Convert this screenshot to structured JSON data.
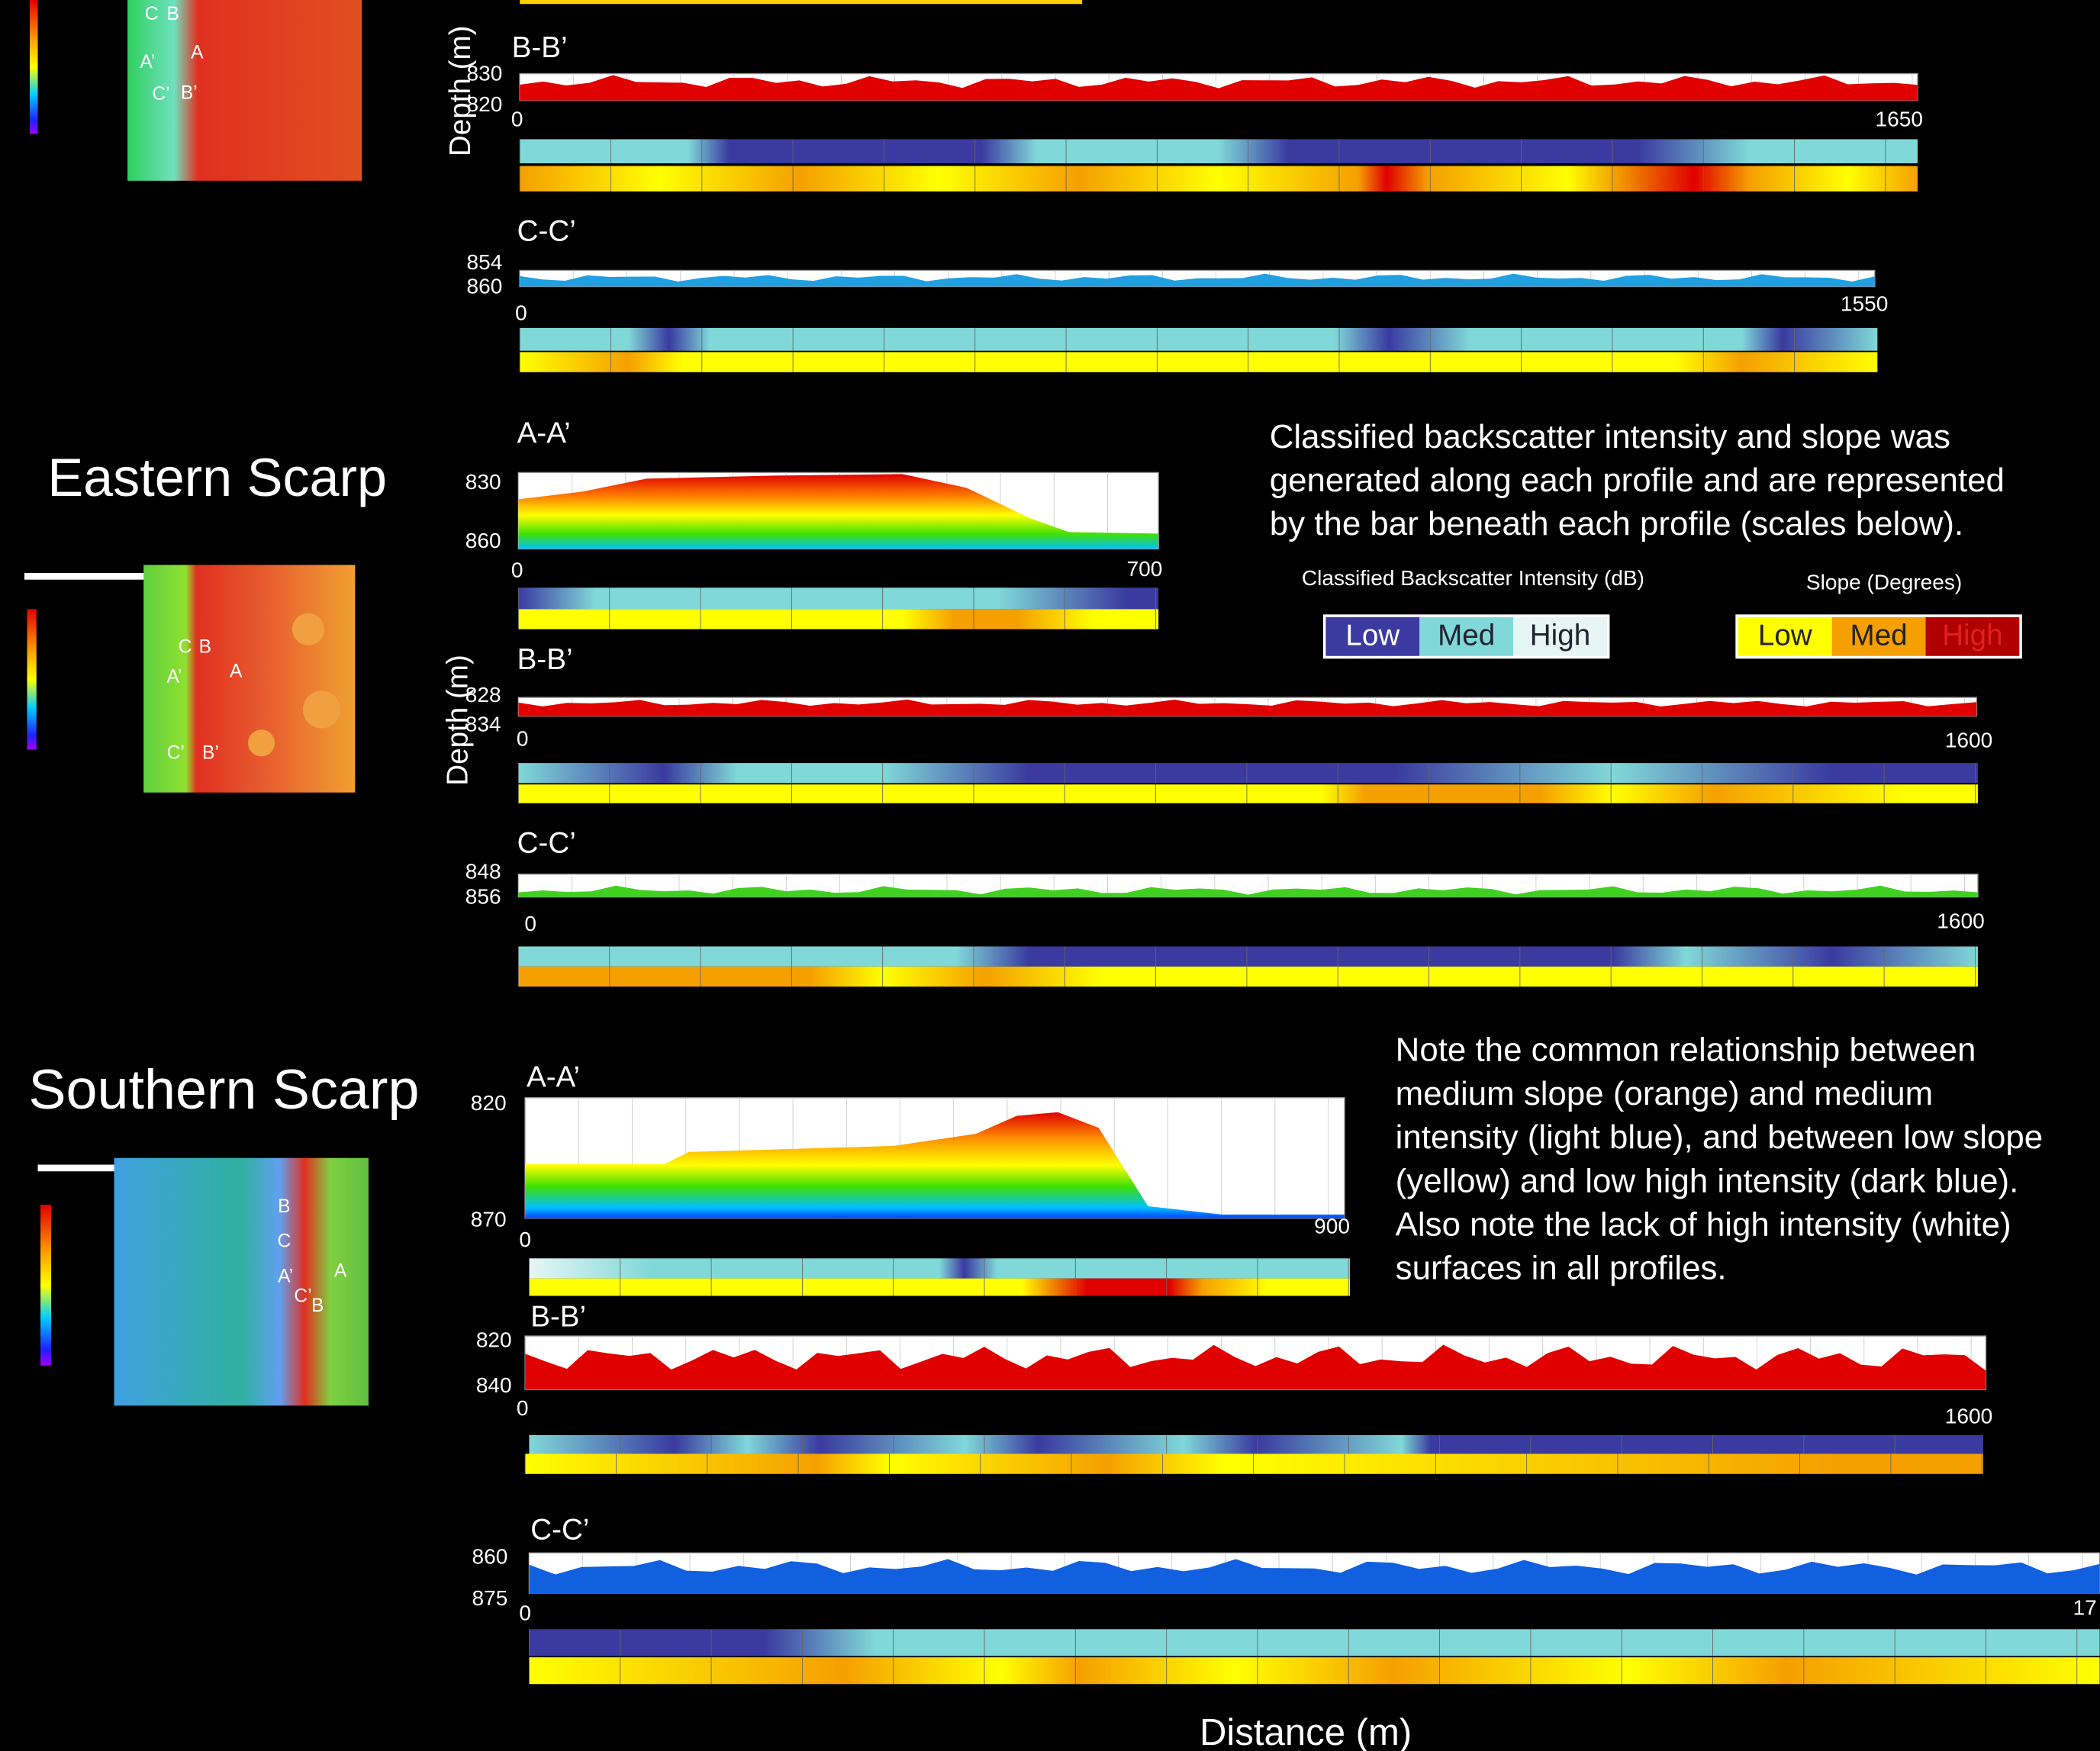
{
  "top": {
    "map_labels": [
      "C",
      "B",
      "A’",
      "A",
      "C’",
      "B’"
    ],
    "profiles": [
      {
        "label": "B-B’",
        "depth_ticks": [
          830,
          820
        ],
        "distance_ticks": [
          0,
          1650
        ]
      },
      {
        "label": "C-C’",
        "depth_ticks": [
          854,
          860
        ],
        "distance_ticks": [
          0,
          1550
        ]
      }
    ]
  },
  "axis_labels": {
    "depth": "Depth (m)",
    "distance": "Distance (m)"
  },
  "eastern": {
    "title": "Eastern Scarp",
    "map_labels": [
      "C",
      "B",
      "A’",
      "A",
      "C’",
      "B’"
    ],
    "profiles": [
      {
        "label": "A-A’",
        "depth_ticks": [
          830,
          860
        ],
        "distance_ticks": [
          0,
          700
        ]
      },
      {
        "label": "B-B’",
        "depth_ticks": [
          828,
          834
        ],
        "distance_ticks": [
          0,
          1600
        ]
      },
      {
        "label": "C-C’",
        "depth_ticks": [
          848,
          856
        ],
        "distance_ticks": [
          0,
          1600
        ]
      }
    ]
  },
  "southern": {
    "title": "Southern Scarp",
    "map_labels": [
      "B",
      "C",
      "A’",
      "A",
      "C’",
      "B"
    ],
    "profiles": [
      {
        "label": "A-A’",
        "depth_ticks": [
          820,
          870
        ],
        "distance_ticks": [
          0,
          900
        ]
      },
      {
        "label": "B-B’",
        "depth_ticks": [
          820,
          840
        ],
        "distance_ticks": [
          0,
          1600
        ]
      },
      {
        "label": "C-C’",
        "depth_ticks": [
          860,
          875
        ],
        "distance_ticks": [
          0,
          "17"
        ]
      }
    ]
  },
  "description": [
    "Classified backscatter intensity and slope was",
    "generated along each profile and are represented",
    "by the bar beneath each profile (scales below)."
  ],
  "note": [
    "Note the common relationship between",
    "medium slope (orange) and medium",
    "intensity (light blue), and between low slope",
    "(yellow) and low high intensity (dark blue).",
    "Also note the lack of high intensity (white)",
    "surfaces in all profiles."
  ],
  "legend": {
    "intensity": {
      "title": "Classified Backscatter Intensity (dB)",
      "classes": [
        "Low",
        "Med",
        "High"
      ]
    },
    "slope": {
      "title": "Slope (Degrees)",
      "classes": [
        "Low",
        "Med",
        "High"
      ]
    }
  }
}
